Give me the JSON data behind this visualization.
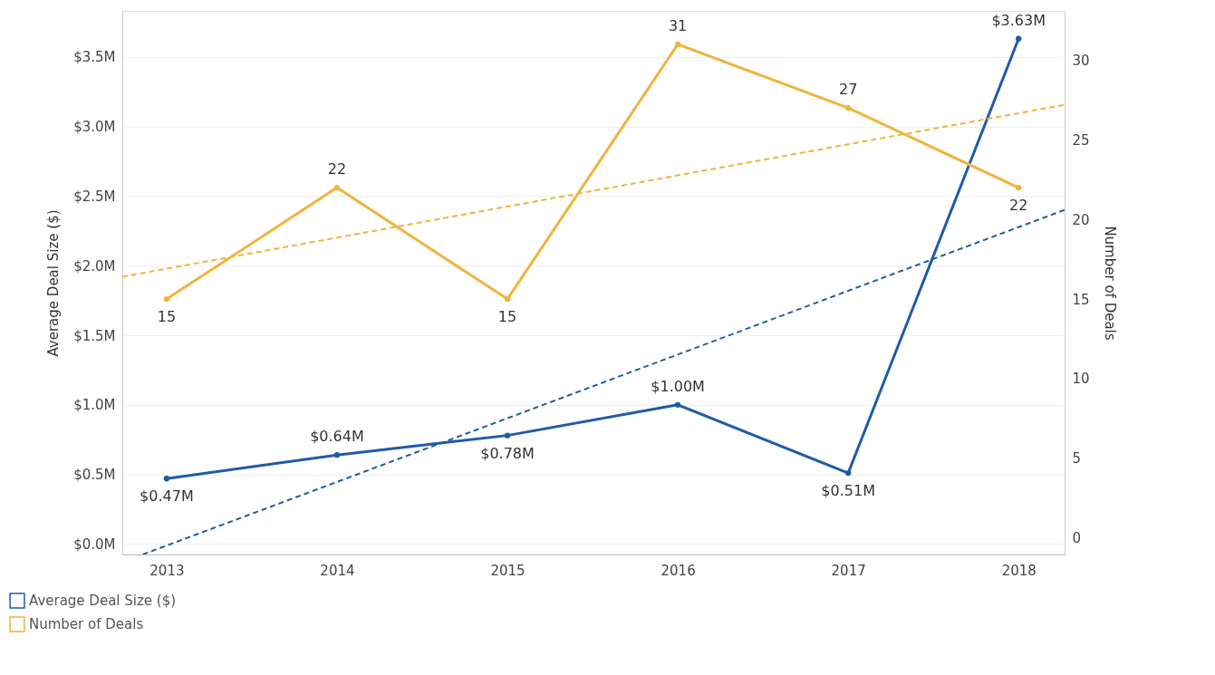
{
  "chart_data": {
    "type": "line",
    "ylabel": "Average Deal Size ($)",
    "y2label": "Number of Deals",
    "x": [
      2013,
      2014,
      2015,
      2016,
      2017,
      2018
    ],
    "xlim": [
      2012.74,
      2018.27
    ],
    "xticks": [
      2013,
      2014,
      2015,
      2016,
      2017,
      2018
    ],
    "ylim": [
      -0.075,
      3.83
    ],
    "yticks": [
      {
        "value": 0,
        "label": "$0.0M"
      },
      {
        "value": 0.5,
        "label": "$0.5M"
      },
      {
        "value": 1.0,
        "label": "$1.0M"
      },
      {
        "value": 1.5,
        "label": "$1.5M"
      },
      {
        "value": 2.0,
        "label": "$2.0M"
      },
      {
        "value": 2.5,
        "label": "$2.5M"
      },
      {
        "value": 3.0,
        "label": "$3.0M"
      },
      {
        "value": 3.5,
        "label": "$3.5M"
      }
    ],
    "y2lim": [
      -1.04,
      33.1
    ],
    "y2ticks": [
      0,
      5,
      10,
      15,
      20,
      25,
      30
    ],
    "series": [
      {
        "name": "Average Deal Size ($)",
        "color": "#1f5ba5",
        "values": [
          0.47,
          0.64,
          0.78,
          1.0,
          0.51,
          3.63
        ],
        "value_labels": [
          "$0.47M",
          "$0.64M",
          "$0.78M",
          "$1.00M",
          "$0.51M",
          "$3.63M"
        ]
      },
      {
        "name": "Number of Deals",
        "color": "#f0b43c",
        "axis": "y2",
        "values": [
          15,
          22,
          15,
          31,
          27,
          22
        ],
        "value_labels": [
          "15",
          "22",
          "15",
          "31",
          "27",
          "22"
        ]
      },
      {
        "type": "line",
        "color": "#1f5ba5",
        "x": [
          2012.86,
          2018.27
        ],
        "values": [
          -0.075,
          2.4
        ],
        "line_style": "dashed",
        "marker": "none"
      },
      {
        "type": "line",
        "color": "#f0b43c",
        "axis": "y2",
        "x": [
          2012.74,
          2018.27
        ],
        "values": [
          16.4,
          27.2
        ],
        "line_style": "dashed",
        "marker": "none"
      }
    ],
    "marker": "circle",
    "grid": "y",
    "legend": "bottom left"
  }
}
